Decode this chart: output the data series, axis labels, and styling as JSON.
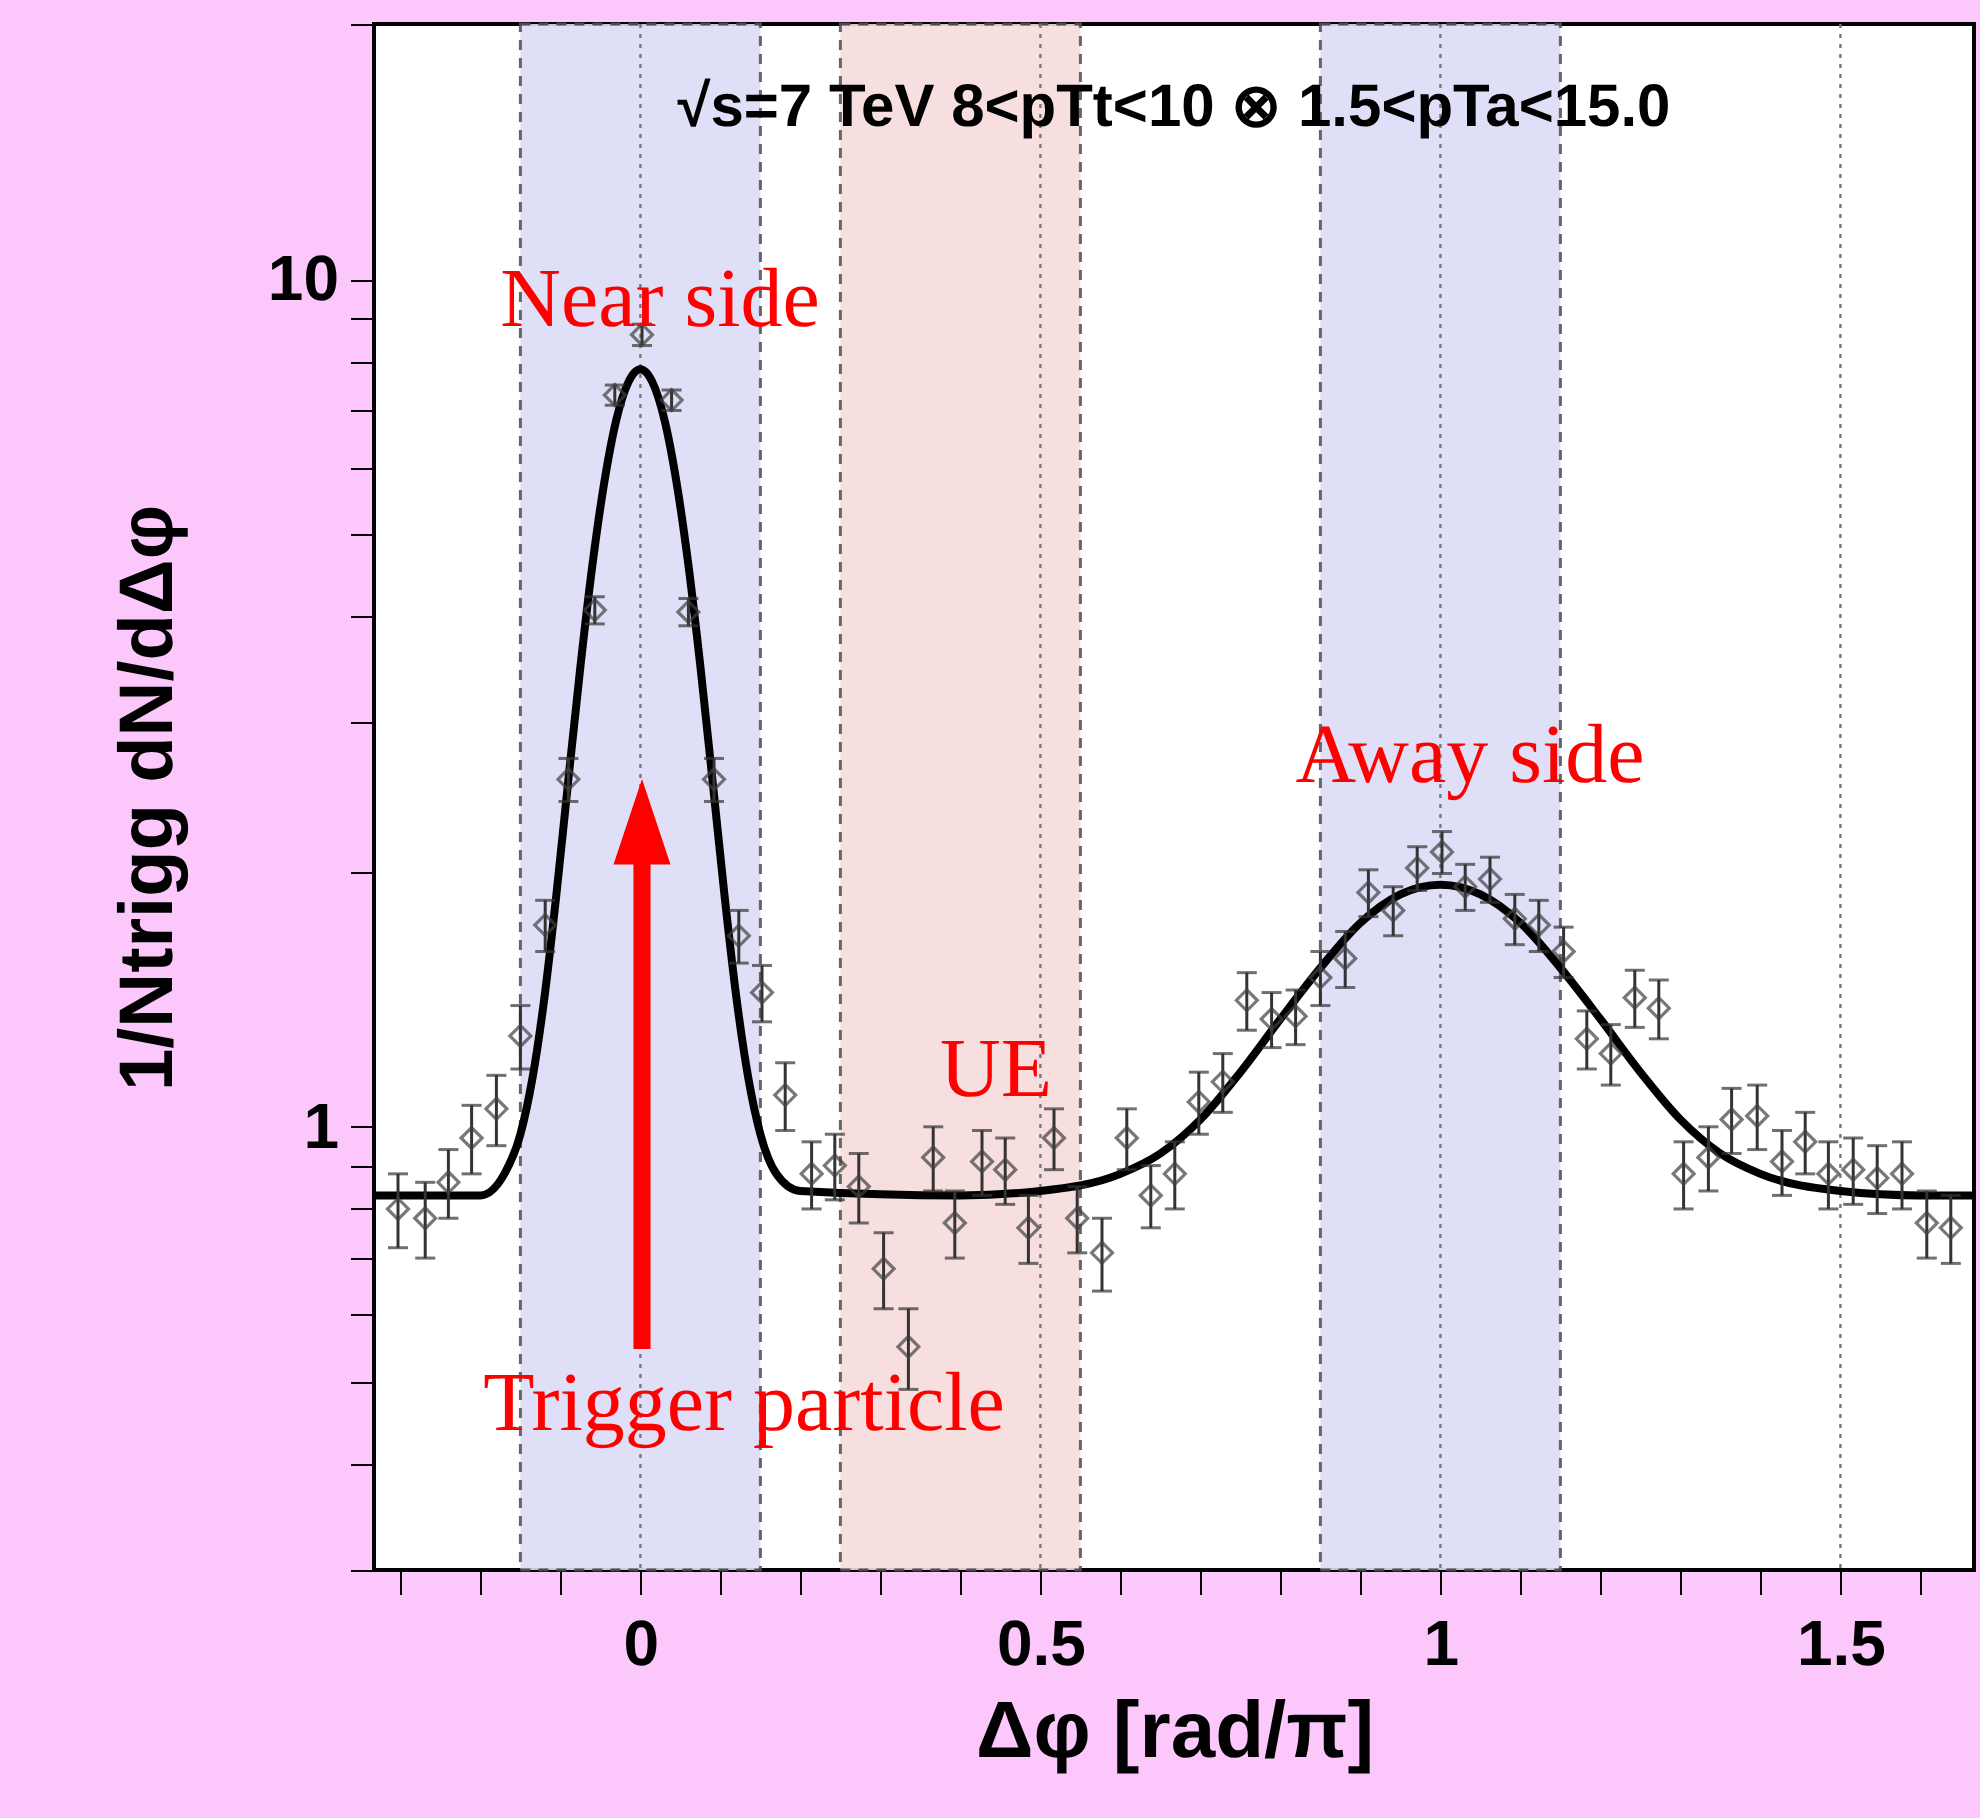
{
  "chart_data": {
    "type": "scatter",
    "title": "√s=7 TeV   8<pTt<10 ⊗ 1.5<pTa<15.0",
    "xlabel": "Δφ   [rad/π]",
    "ylabel": "1/Ntrigg dN/dΔφ",
    "log": "y",
    "xlim": [
      -0.333,
      1.667
    ],
    "ylim": [
      0.3,
      20
    ],
    "xticks": [
      {
        "value": -0.3,
        "label": null
      },
      {
        "value": -0.2,
        "label": null
      },
      {
        "value": -0.1,
        "label": null
      },
      0,
      {
        "value": 0.1,
        "label": null
      },
      {
        "value": 0.2,
        "label": null
      },
      {
        "value": 0.3,
        "label": null
      },
      {
        "value": 0.4,
        "label": null
      },
      0.5,
      {
        "value": 0.6,
        "label": null
      },
      {
        "value": 0.7,
        "label": null
      },
      {
        "value": 0.8,
        "label": null
      },
      {
        "value": 0.9,
        "label": null
      },
      1,
      {
        "value": 1.1,
        "label": null
      },
      {
        "value": 1.2,
        "label": null
      },
      {
        "value": 1.3,
        "label": null
      },
      {
        "value": 1.4,
        "label": null
      },
      1.5,
      {
        "value": 1.6,
        "label": null
      }
    ],
    "yticks": [
      {
        "value": 0.3,
        "label": null
      },
      {
        "value": 0.4,
        "label": null
      },
      {
        "value": 0.5,
        "label": null
      },
      {
        "value": 0.6,
        "label": null
      },
      {
        "value": 0.7,
        "label": null
      },
      {
        "value": 0.8,
        "label": null
      },
      {
        "value": 0.9,
        "label": null
      },
      1,
      {
        "value": 2,
        "label": null
      },
      {
        "value": 3,
        "label": null
      },
      {
        "value": 4,
        "label": null
      },
      {
        "value": 5,
        "label": null
      },
      {
        "value": 6,
        "label": null
      },
      {
        "value": 7,
        "label": null
      },
      {
        "value": 8,
        "label": null
      },
      {
        "value": 9,
        "label": null
      },
      10,
      {
        "value": 20,
        "label": null
      }
    ],
    "grid": "x",
    "bands": [
      {
        "axis": "x",
        "from": -0.15,
        "to": 0.15,
        "color": "#dcdcf8"
      },
      {
        "axis": "x",
        "from": 0.25,
        "to": 0.55,
        "color": "#f8dcdc"
      },
      {
        "axis": "x",
        "from": 0.85,
        "to": 1.15,
        "color": "#dcdcf8"
      }
    ],
    "annotations": [
      "Near side",
      "Away side",
      "UE",
      "Trigger particle"
    ],
    "series": [
      {
        "type": "line",
        "color": "#000000",
        "line_style": "solid",
        "x": [
          -0.333,
          -0.2,
          -0.17,
          -0.15,
          -0.135,
          -0.12,
          -0.105,
          -0.09,
          -0.075,
          -0.06,
          -0.045,
          -0.03,
          -0.015,
          0,
          0.015,
          0.03,
          0.045,
          0.06,
          0.075,
          0.09,
          0.105,
          0.12,
          0.135,
          0.15,
          0.17,
          0.2,
          0.4,
          0.5,
          0.6,
          0.65,
          0.7,
          0.75,
          0.8,
          0.85,
          0.9,
          0.95,
          1.0,
          1.05,
          1.1,
          1.15,
          1.2,
          1.25,
          1.3,
          1.35,
          1.4,
          1.5,
          1.6,
          1.667
        ],
        "values": [
          0.83,
          0.83,
          0.88,
          0.98,
          1.14,
          1.42,
          1.88,
          2.57,
          3.49,
          4.6,
          5.77,
          6.83,
          7.56,
          7.83,
          7.56,
          6.83,
          5.77,
          4.6,
          3.49,
          2.57,
          1.88,
          1.42,
          1.14,
          0.98,
          0.88,
          0.84,
          0.83,
          0.84,
          0.88,
          0.93,
          1.02,
          1.16,
          1.34,
          1.54,
          1.74,
          1.88,
          1.93,
          1.88,
          1.74,
          1.54,
          1.34,
          1.16,
          1.02,
          0.93,
          0.88,
          0.84,
          0.83,
          0.83
        ]
      },
      {
        "color": "#404040",
        "marker": "diamond",
        "x": [
          -0.303,
          -0.269,
          -0.24,
          -0.211,
          -0.18,
          -0.15,
          -0.119,
          -0.09,
          -0.057,
          -0.032,
          0.002,
          0.039,
          0.06,
          0.092,
          0.123,
          0.152,
          0.181,
          0.214,
          0.243,
          0.273,
          0.304,
          0.335,
          0.366,
          0.393,
          0.427,
          0.456,
          0.485,
          0.517,
          0.546,
          0.577,
          0.608,
          0.638,
          0.668,
          0.698,
          0.728,
          0.758,
          0.789,
          0.819,
          0.85,
          0.881,
          0.91,
          0.941,
          0.971,
          1.002,
          1.031,
          1.062,
          1.093,
          1.123,
          1.154,
          1.183,
          1.213,
          1.243,
          1.273,
          1.304,
          1.335,
          1.364,
          1.396,
          1.427,
          1.456,
          1.485,
          1.516,
          1.546,
          1.577,
          1.608,
          1.638
        ],
        "values": [
          0.8,
          0.78,
          0.86,
          0.97,
          1.05,
          1.28,
          1.73,
          2.57,
          4.07,
          7.3,
          8.6,
          7.2,
          4.05,
          2.57,
          1.68,
          1.44,
          1.09,
          0.88,
          0.9,
          0.85,
          0.68,
          0.55,
          0.92,
          0.77,
          0.91,
          0.89,
          0.76,
          0.97,
          0.78,
          0.71,
          0.97,
          0.83,
          0.88,
          1.07,
          1.13,
          1.41,
          1.34,
          1.35,
          1.5,
          1.58,
          1.89,
          1.8,
          2.02,
          2.11,
          1.92,
          1.96,
          1.76,
          1.73,
          1.61,
          1.27,
          1.22,
          1.42,
          1.38,
          0.88,
          0.92,
          1.02,
          1.03,
          0.91,
          0.96,
          0.88,
          0.89,
          0.87,
          0.88,
          0.77,
          0.76
        ],
        "errors": [
          0.08,
          0.08,
          0.08,
          0.09,
          0.1,
          0.11,
          0.12,
          0.15,
          0.15,
          0.2,
          0.25,
          0.2,
          0.15,
          0.15,
          0.12,
          0.11,
          0.1,
          0.08,
          0.08,
          0.08,
          0.07,
          0.06,
          0.08,
          0.07,
          0.08,
          0.08,
          0.07,
          0.08,
          0.07,
          0.07,
          0.08,
          0.07,
          0.08,
          0.09,
          0.09,
          0.11,
          0.1,
          0.1,
          0.11,
          0.12,
          0.12,
          0.12,
          0.12,
          0.12,
          0.12,
          0.12,
          0.12,
          0.12,
          0.11,
          0.1,
          0.1,
          0.11,
          0.11,
          0.08,
          0.08,
          0.09,
          0.09,
          0.08,
          0.08,
          0.08,
          0.08,
          0.08,
          0.08,
          0.07,
          0.07
        ]
      }
    ]
  }
}
